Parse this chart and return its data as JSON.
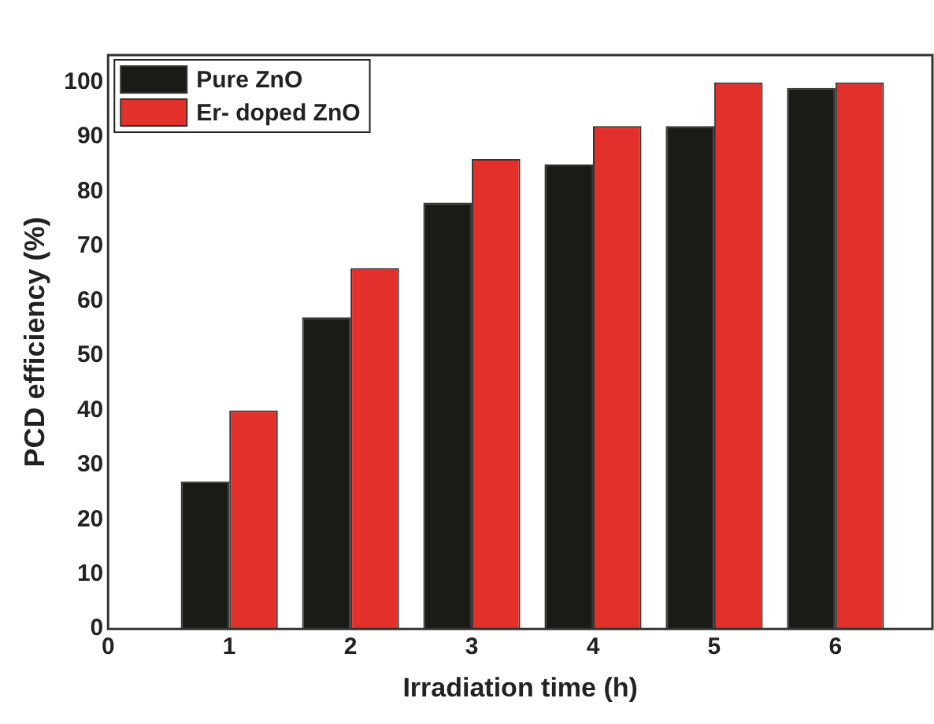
{
  "chart_data": {
    "type": "bar",
    "xlabel": "Irradiation time (h)",
    "ylabel": "PCD efficiency (%)",
    "x": [
      1,
      2,
      3,
      4,
      5,
      6
    ],
    "series": [
      {
        "name": "Pure ZnO",
        "color": "#1a1a16",
        "values": [
          27,
          57,
          78,
          85,
          92,
          99
        ]
      },
      {
        "name": "Er- doped ZnO",
        "color": "#e3302b",
        "values": [
          40,
          66,
          86,
          92,
          100,
          100
        ]
      }
    ],
    "xlim": [
      0,
      6.8
    ],
    "xticks": [
      0,
      1,
      2,
      3,
      4,
      5,
      6
    ],
    "ylim": [
      0,
      105
    ],
    "yticks": [
      0,
      10,
      20,
      30,
      40,
      50,
      60,
      70,
      80,
      90,
      100
    ],
    "grid": false,
    "legend": "top left"
  }
}
